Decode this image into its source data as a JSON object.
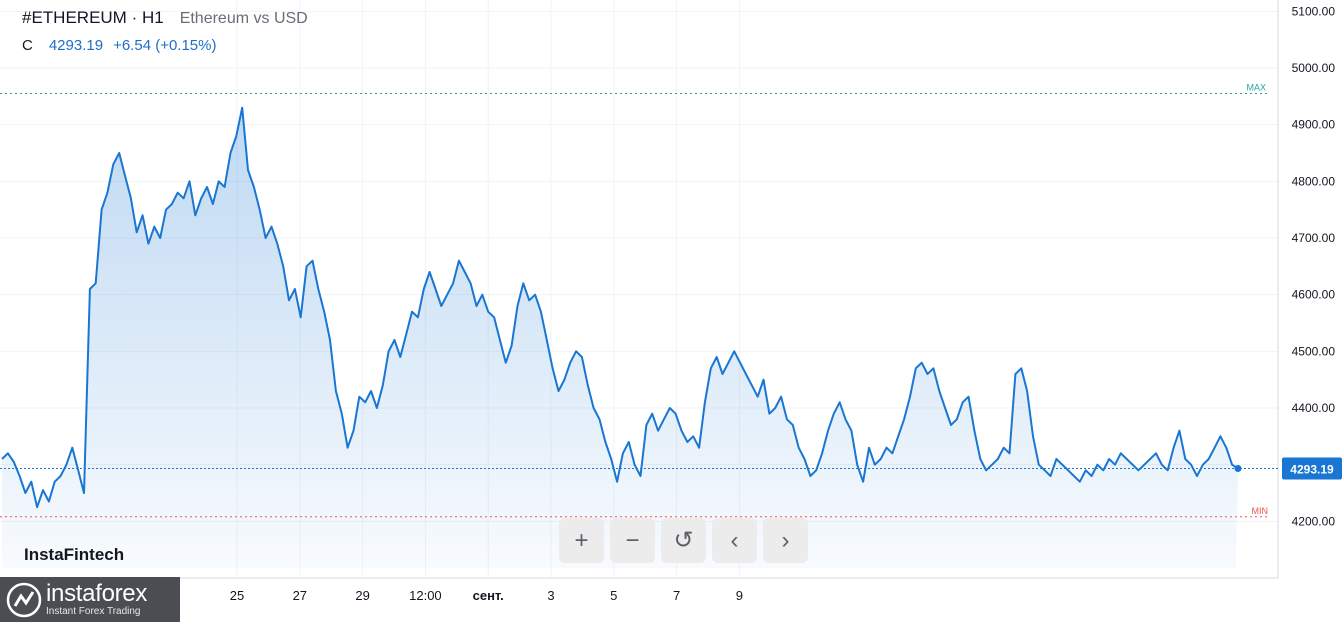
{
  "header": {
    "symbol": "#ETHEREUM · H1",
    "subtitle": "Ethereum vs USD",
    "close_label": "C",
    "close_value": "4293.19",
    "change": "+6.54 (+0.15%)"
  },
  "watermark": "InstaFintech",
  "logo": {
    "name": "instaforex",
    "tagline": "Instant Forex Trading"
  },
  "controls": [
    {
      "name": "zoom-in-button",
      "glyph": "+"
    },
    {
      "name": "zoom-out-button",
      "glyph": "−"
    },
    {
      "name": "reset-button",
      "glyph": "↺"
    },
    {
      "name": "scroll-left-button",
      "glyph": "‹"
    },
    {
      "name": "scroll-right-button",
      "glyph": "›"
    }
  ],
  "chart_data": {
    "type": "area",
    "ylim": [
      4100,
      5120
    ],
    "y_ticks": [
      "5100.00",
      "5000.00",
      "4900.00",
      "4800.00",
      "4700.00",
      "4600.00",
      "4500.00",
      "4400.00",
      "4300.00",
      "4200.00"
    ],
    "x_ticks": [
      "25",
      "27",
      "29",
      "12:00",
      "сент.",
      "3",
      "5",
      "7",
      "9"
    ],
    "max_label": "MAX",
    "max_value": 4955,
    "min_label": "MIN",
    "min_value": 4208,
    "last_price_label": "4293.19",
    "last_price": 4293.19,
    "colors": {
      "line": "#1976d2",
      "max": "#26a69a",
      "min": "#ef5350",
      "last": "#1976d2"
    },
    "series": [
      {
        "values": [
          4310,
          4320,
          4305,
          4280,
          4250,
          4270,
          4225,
          4255,
          4235,
          4270,
          4280,
          4300,
          4330,
          4290,
          4250,
          4610,
          4620,
          4750,
          4780,
          4830,
          4850,
          4810,
          4770,
          4710,
          4740,
          4690,
          4720,
          4700,
          4750,
          4760,
          4780,
          4770,
          4800,
          4740,
          4770,
          4790,
          4760,
          4800,
          4790,
          4850,
          4880,
          4930,
          4820,
          4790,
          4750,
          4700,
          4720,
          4690,
          4650,
          4590,
          4610,
          4560,
          4650,
          4660,
          4610,
          4570,
          4520,
          4430,
          4390,
          4330,
          4360,
          4420,
          4410,
          4430,
          4400,
          4440,
          4500,
          4520,
          4490,
          4530,
          4570,
          4560,
          4610,
          4640,
          4610,
          4580,
          4600,
          4620,
          4660,
          4640,
          4620,
          4580,
          4600,
          4570,
          4560,
          4520,
          4480,
          4510,
          4580,
          4620,
          4590,
          4600,
          4570,
          4520,
          4470,
          4430,
          4450,
          4480,
          4500,
          4490,
          4440,
          4400,
          4380,
          4340,
          4310,
          4270,
          4320,
          4340,
          4300,
          4280,
          4370,
          4390,
          4360,
          4380,
          4400,
          4390,
          4360,
          4340,
          4350,
          4330,
          4410,
          4470,
          4490,
          4460,
          4480,
          4500,
          4480,
          4460,
          4440,
          4420,
          4450,
          4390,
          4400,
          4420,
          4380,
          4370,
          4330,
          4310,
          4280,
          4290,
          4320,
          4360,
          4390,
          4410,
          4380,
          4360,
          4300,
          4270,
          4330,
          4300,
          4310,
          4330,
          4320,
          4350,
          4380,
          4420,
          4470,
          4480,
          4460,
          4470,
          4430,
          4400,
          4370,
          4380,
          4410,
          4420,
          4360,
          4310,
          4290,
          4300,
          4310,
          4330,
          4320,
          4460,
          4470,
          4430,
          4350,
          4300,
          4290,
          4280,
          4310,
          4300,
          4290,
          4280,
          4270,
          4290,
          4280,
          4300,
          4290,
          4310,
          4300,
          4320,
          4310,
          4300,
          4290,
          4300,
          4310,
          4320,
          4300,
          4290,
          4330,
          4360,
          4310,
          4300,
          4280,
          4300,
          4310,
          4330,
          4350,
          4330,
          4300,
          4293.19
        ]
      }
    ]
  }
}
